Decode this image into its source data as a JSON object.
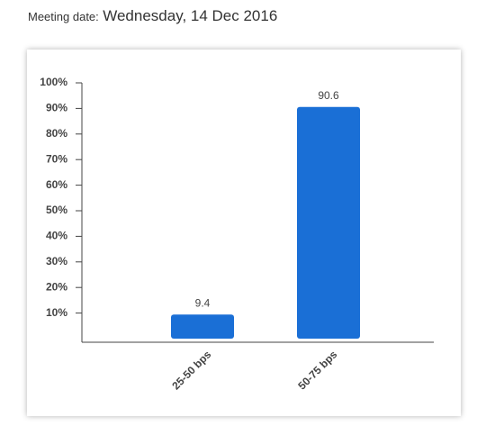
{
  "header": {
    "label": "Meeting date:",
    "date": "Wednesday, 14 Dec 2016"
  },
  "chart_data": {
    "type": "bar",
    "categories": [
      "25-50 bps",
      "50-75 bps"
    ],
    "values": [
      9.4,
      90.6
    ],
    "color": "#1a6fd6",
    "ylim": [
      0,
      100
    ],
    "yticks": [
      {
        "value": 10,
        "label": "10%"
      },
      {
        "value": 20,
        "label": "20%"
      },
      {
        "value": 30,
        "label": "30%"
      },
      {
        "value": 40,
        "label": "40%"
      },
      {
        "value": 50,
        "label": "50%"
      },
      {
        "value": 60,
        "label": "60%"
      },
      {
        "value": 70,
        "label": "70%"
      },
      {
        "value": 80,
        "label": "80%"
      },
      {
        "value": 90,
        "label": "90%"
      },
      {
        "value": 100,
        "label": "100%"
      }
    ]
  }
}
